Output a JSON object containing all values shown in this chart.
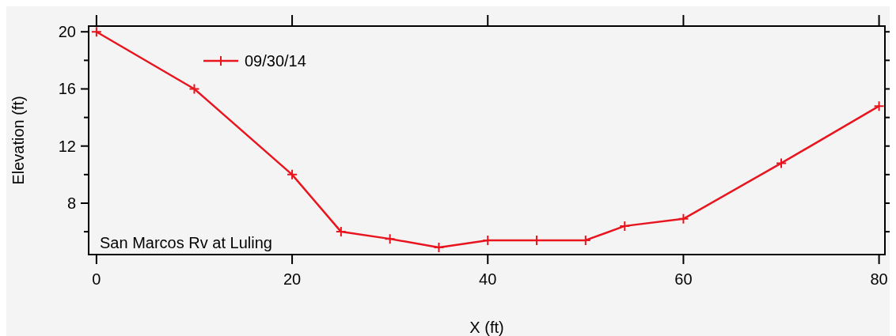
{
  "chart_data": {
    "type": "line",
    "xlabel": "X (ft)",
    "ylabel": "Elevation (ft)",
    "x": [
      0,
      10,
      20,
      25,
      30,
      35,
      40,
      45,
      50,
      54,
      60,
      70,
      80
    ],
    "series": [
      {
        "name": "09/30/14",
        "color": "#e8141e",
        "values": [
          20,
          16,
          10,
          6,
          5.5,
          4.9,
          5.4,
          5.4,
          5.4,
          6.4,
          6.9,
          10.8,
          14.8
        ]
      }
    ],
    "xlim": [
      -0.8,
      80.6
    ],
    "ylim": [
      4.4,
      20.4
    ],
    "xticks": [
      0,
      20,
      40,
      60,
      80
    ],
    "yticks": [
      20,
      {
        "value": 18,
        "label": null
      },
      16,
      {
        "value": 14,
        "label": null
      },
      12,
      {
        "value": 10,
        "label": null
      },
      8,
      {
        "value": 6,
        "label": null
      }
    ],
    "annotations": [
      "San Marcos Rv at Luling"
    ],
    "legend": "top left",
    "marker": "cross",
    "line_style": "solid",
    "grid": false
  }
}
